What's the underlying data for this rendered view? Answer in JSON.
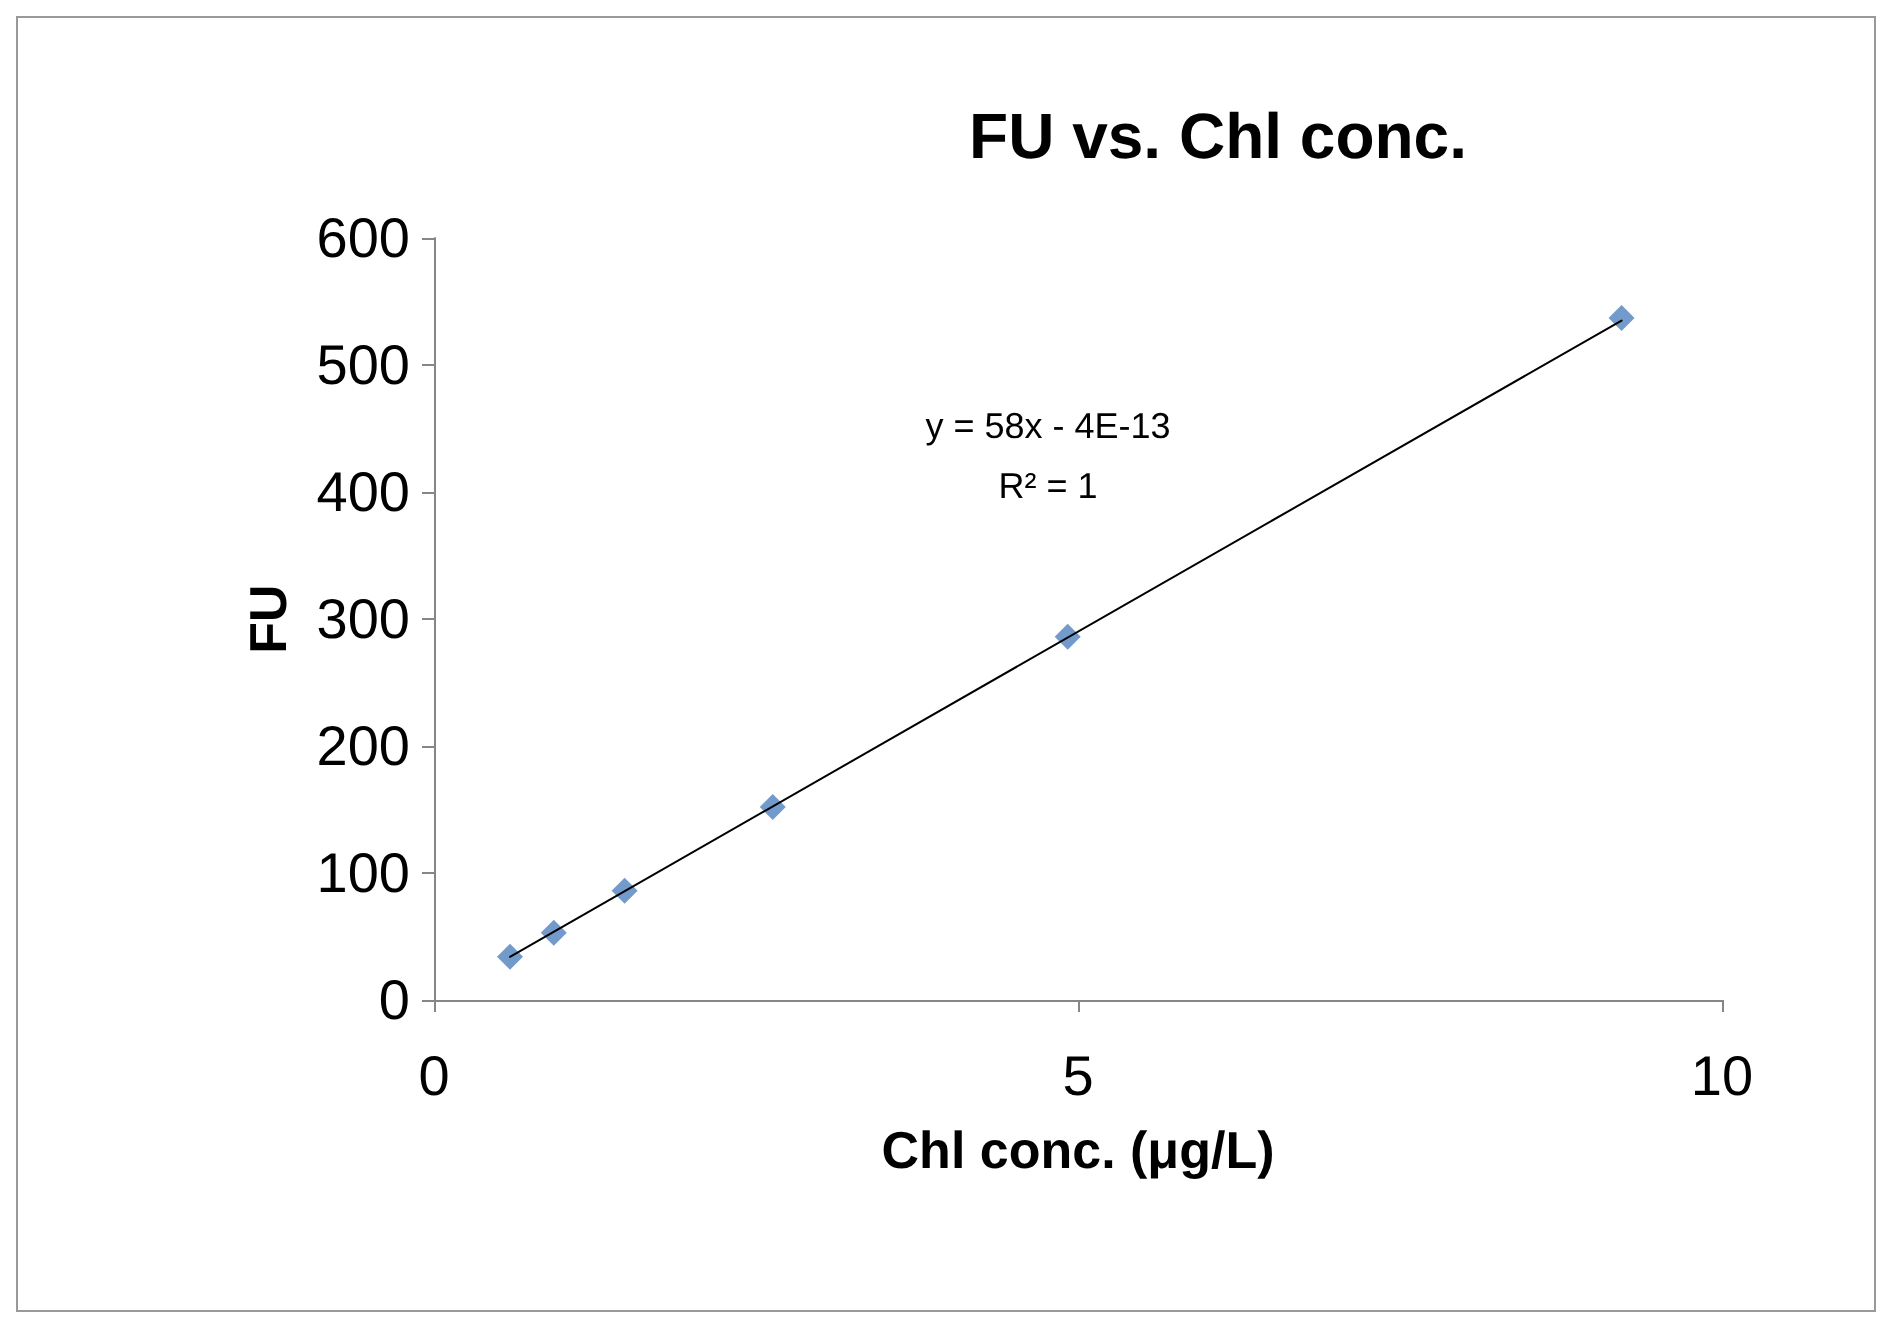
{
  "chart_data": {
    "type": "scatter",
    "title": "FU vs. Chl conc.",
    "xlabel": "Chl conc. (μg/L)",
    "ylabel": "FU",
    "xlim": [
      0,
      10
    ],
    "xticks": [
      0,
      5,
      10
    ],
    "ylim": [
      0,
      600
    ],
    "yticks": [
      0,
      100,
      200,
      300,
      400,
      500,
      600
    ],
    "grid": false,
    "marker": "diamond",
    "annotations": [
      "y = 58x - 4E-13",
      "R² = 1"
    ],
    "series": [
      {
        "color": "#4f81bd",
        "x": [
          0.59,
          0.93,
          1.48,
          2.63,
          4.92,
          9.22
        ],
        "values": [
          34,
          53,
          86,
          152,
          286,
          537
        ]
      },
      {
        "type": "line",
        "color": "#000000",
        "x": [
          0.59,
          9.22
        ],
        "values": [
          34,
          535
        ],
        "marker": "none",
        "line_style": "solid"
      }
    ]
  }
}
